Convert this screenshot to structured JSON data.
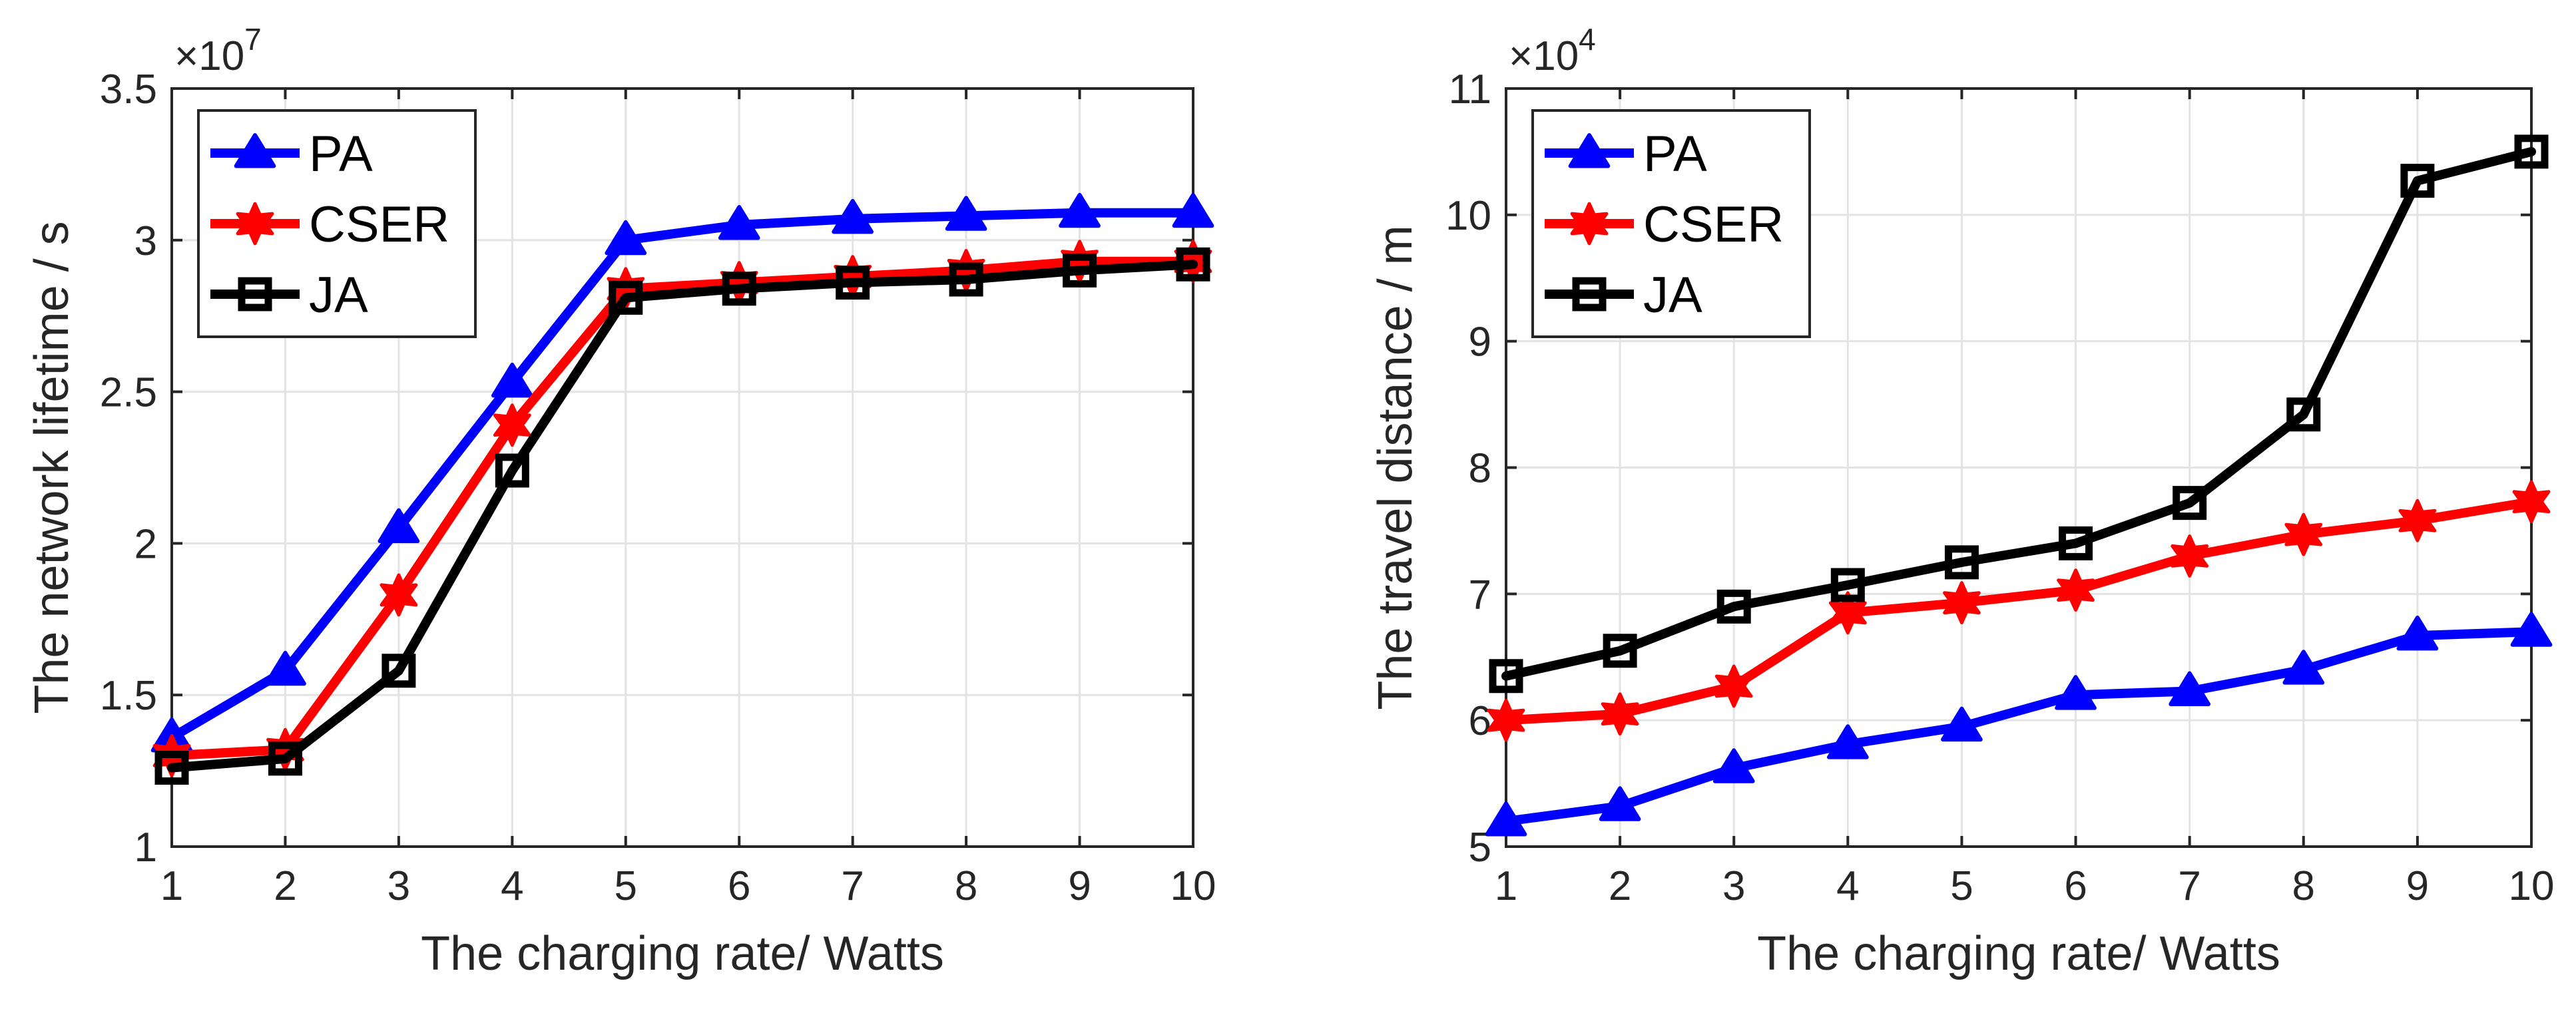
{
  "chart_data": [
    {
      "type": "line",
      "title": "",
      "xlabel": "The charging rate/ Watts",
      "ylabel": "The network lifetime / s",
      "y_multiplier": {
        "base": "×10",
        "exponent": "7"
      },
      "x": [
        1,
        2,
        3,
        4,
        5,
        6,
        7,
        8,
        9,
        10
      ],
      "xlim": [
        1,
        10
      ],
      "ylim": [
        1,
        3.5
      ],
      "xticks": [
        "1",
        "2",
        "3",
        "4",
        "5",
        "6",
        "7",
        "8",
        "9",
        "10"
      ],
      "yticks": [
        "1",
        "1.5",
        "2",
        "2.5",
        "3",
        "3.5"
      ],
      "ytick_values": [
        1,
        1.5,
        2,
        2.5,
        3,
        3.5
      ],
      "grid": true,
      "legend_position": "top-left",
      "series": [
        {
          "name": "PA",
          "color": "#0000ff",
          "marker": "triangle",
          "values": [
            1.36,
            1.58,
            2.05,
            2.53,
            3.0,
            3.05,
            3.07,
            3.08,
            3.09,
            3.09
          ]
        },
        {
          "name": "CSER",
          "color": "#ff0000",
          "marker": "hexagram",
          "values": [
            1.3,
            1.32,
            1.83,
            2.39,
            2.84,
            2.86,
            2.88,
            2.9,
            2.93,
            2.93
          ]
        },
        {
          "name": "JA",
          "color": "#000000",
          "marker": "square",
          "values": [
            1.26,
            1.29,
            1.58,
            2.24,
            2.81,
            2.84,
            2.86,
            2.87,
            2.9,
            2.92
          ]
        }
      ]
    },
    {
      "type": "line",
      "title": "",
      "xlabel": "The charging rate/ Watts",
      "ylabel": "The travel distance / m",
      "y_multiplier": {
        "base": "×10",
        "exponent": "4"
      },
      "x": [
        1,
        2,
        3,
        4,
        5,
        6,
        7,
        8,
        9,
        10
      ],
      "xlim": [
        1,
        10
      ],
      "ylim": [
        5,
        11
      ],
      "xticks": [
        "1",
        "2",
        "3",
        "4",
        "5",
        "6",
        "7",
        "8",
        "9",
        "10"
      ],
      "yticks": [
        "5",
        "6",
        "7",
        "8",
        "9",
        "10",
        "11"
      ],
      "ytick_values": [
        5,
        6,
        7,
        8,
        9,
        10,
        11
      ],
      "grid": true,
      "legend_position": "top-left",
      "series": [
        {
          "name": "PA",
          "color": "#0000ff",
          "marker": "triangle",
          "values": [
            5.2,
            5.32,
            5.62,
            5.81,
            5.95,
            6.2,
            6.23,
            6.4,
            6.67,
            6.7
          ]
        },
        {
          "name": "CSER",
          "color": "#ff0000",
          "marker": "hexagram",
          "values": [
            6.0,
            6.05,
            6.27,
            6.85,
            6.93,
            7.03,
            7.3,
            7.47,
            7.58,
            7.73
          ]
        },
        {
          "name": "JA",
          "color": "#000000",
          "marker": "square",
          "values": [
            6.35,
            6.55,
            6.9,
            7.07,
            7.25,
            7.4,
            7.72,
            8.42,
            10.27,
            10.5
          ]
        }
      ]
    }
  ]
}
